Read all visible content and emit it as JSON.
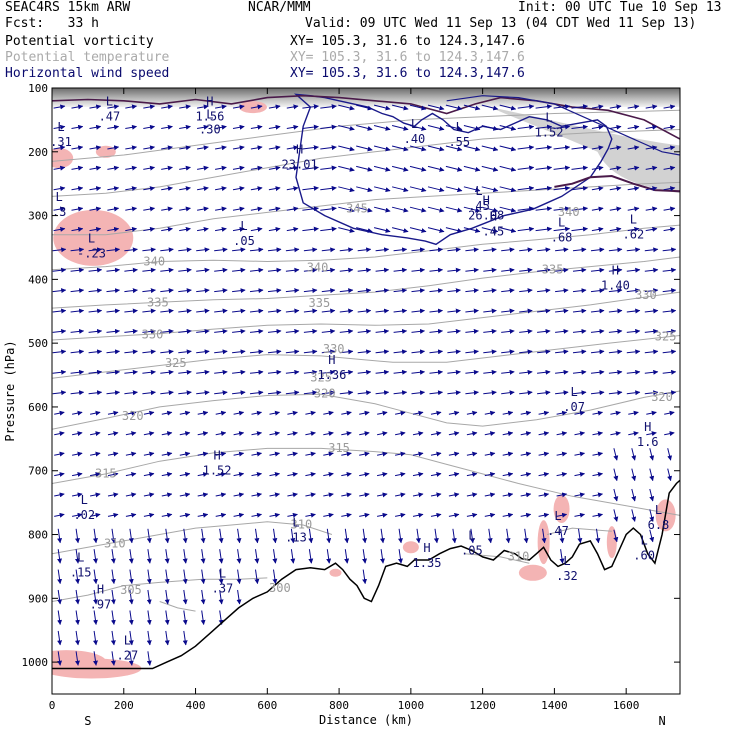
{
  "header": {
    "model": "SEAC4RS 15km ARW",
    "center": "NCAR/MMM",
    "init": "Init: 00 UTC Tue 10 Sep 13",
    "fcst": "Fcst:   33 h",
    "valid": "Valid: 09 UTC Wed 11 Sep 13 (04 CDT Wed 11 Sep 13)",
    "fields": [
      {
        "name": "Potential vorticity",
        "color": "#000000"
      },
      {
        "name": "Potential temperature",
        "color": "#aaaaaa"
      },
      {
        "name": "Horizontal wind speed",
        "color": "#0a0a6e"
      }
    ],
    "xy": "XY= 105.3, 31.6 to 124.3,147.6"
  },
  "colors": {
    "wind": "#0a0a8c",
    "theta": "#a8a8a8",
    "pv_shade": "#f4b4b4",
    "pv_contour": "#1a1a8a",
    "terrain": "#000000",
    "labels": "#10106e"
  },
  "chart_data": {
    "type": "cross-section",
    "xlabel": "Distance (km)",
    "ylabel": "Pressure (hPa)",
    "x_ticks": [
      0,
      200,
      400,
      600,
      800,
      1000,
      1200,
      1400,
      1600
    ],
    "y_ticks": [
      100,
      200,
      300,
      400,
      500,
      600,
      700,
      800,
      900,
      1000
    ],
    "xlim": [
      0,
      1750
    ],
    "ylim": [
      1050,
      100
    ],
    "endpoints": {
      "left": "S",
      "right": "N"
    },
    "theta_contours": [
      {
        "value": "305",
        "km": 220,
        "p": 888
      },
      {
        "value": "310",
        "km": 175,
        "p": 815
      },
      {
        "value": "315",
        "km": 150,
        "p": 705
      },
      {
        "value": "320",
        "km": 225,
        "p": 615
      },
      {
        "value": "325",
        "km": 345,
        "p": 532
      },
      {
        "value": "330",
        "km": 280,
        "p": 487
      },
      {
        "value": "335",
        "km": 295,
        "p": 437
      },
      {
        "value": "340",
        "km": 285,
        "p": 373
      },
      {
        "value": "345",
        "km": 850,
        "p": 290
      },
      {
        "value": "315",
        "km": 800,
        "p": 665
      },
      {
        "value": "320",
        "km": 760,
        "p": 580
      },
      {
        "value": "325",
        "km": 750,
        "p": 555
      },
      {
        "value": "330",
        "km": 785,
        "p": 510
      },
      {
        "value": "335",
        "km": 745,
        "p": 438
      },
      {
        "value": "340",
        "km": 740,
        "p": 382
      },
      {
        "value": "310",
        "km": 695,
        "p": 785
      },
      {
        "value": "300",
        "km": 635,
        "p": 885
      },
      {
        "value": "310",
        "km": 1300,
        "p": 835
      },
      {
        "value": "320",
        "km": 1700,
        "p": 585
      },
      {
        "value": "325",
        "km": 1710,
        "p": 490
      },
      {
        "value": "330",
        "km": 1655,
        "p": 425
      },
      {
        "value": "335",
        "km": 1395,
        "p": 385
      },
      {
        "value": "340",
        "km": 1440,
        "p": 295
      }
    ],
    "extrema": [
      {
        "kind": "L",
        "value": ".31",
        "km": 25,
        "p": 180
      },
      {
        "kind": "L",
        "value": ".3",
        "km": 20,
        "p": 290
      },
      {
        "kind": "L",
        "value": "-.23",
        "km": 110,
        "p": 355
      },
      {
        "kind": "L",
        "value": ".02",
        "km": 90,
        "p": 765
      },
      {
        "kind": "L",
        "value": ".15",
        "km": 80,
        "p": 855
      },
      {
        "kind": "H",
        "value": ".97",
        "km": 135,
        "p": 905
      },
      {
        "kind": "L",
        "value": ".27",
        "km": 210,
        "p": 985
      },
      {
        "kind": "L",
        "value": ".05",
        "km": 535,
        "p": 335
      },
      {
        "kind": "H",
        "value": "1.52",
        "km": 460,
        "p": 695
      },
      {
        "kind": "L",
        "value": ".37",
        "km": 475,
        "p": 880
      },
      {
        "kind": "H",
        "value": "23.01",
        "km": 690,
        "p": 215
      },
      {
        "kind": "H",
        "value": "1.36",
        "km": 780,
        "p": 545
      },
      {
        "kind": "L",
        "value": ".13",
        "km": 680,
        "p": 800
      },
      {
        "kind": "H",
        "value": "1.56",
        "km": 440,
        "p": 140
      },
      {
        "kind": "L",
        "value": ".30",
        "km": 440,
        "p": 160
      },
      {
        "kind": "L",
        "value": ".47",
        "km": 160,
        "p": 140
      },
      {
        "kind": "L",
        "value": ".40",
        "km": 1010,
        "p": 175
      },
      {
        "kind": "L",
        "value": ".45",
        "km": 1190,
        "p": 280
      },
      {
        "kind": "H",
        "value": "26.08",
        "km": 1210,
        "p": 295
      },
      {
        "kind": "H",
        "value": ".45",
        "km": 1230,
        "p": 320
      },
      {
        "kind": "L",
        "value": ".68",
        "km": 1420,
        "p": 330
      },
      {
        "kind": "L",
        "value": ".62",
        "km": 1620,
        "p": 325
      },
      {
        "kind": "H",
        "value": "1.40",
        "km": 1570,
        "p": 405
      },
      {
        "kind": "L",
        "value": ".07",
        "km": 1455,
        "p": 595
      },
      {
        "kind": "H",
        "value": "1.6",
        "km": 1660,
        "p": 650
      },
      {
        "kind": "L",
        "value": ".47",
        "km": 1410,
        "p": 790
      },
      {
        "kind": "L",
        "value": "6.8",
        "km": 1690,
        "p": 780
      },
      {
        "kind": "L",
        "value": ".60",
        "km": 1650,
        "p": 828
      },
      {
        "kind": "H",
        "value": "1.35",
        "km": 1045,
        "p": 840
      },
      {
        "kind": "L",
        "value": ".05",
        "km": 1170,
        "p": 820
      },
      {
        "kind": "L",
        "value": ".32",
        "km": 1435,
        "p": 860
      },
      {
        "kind": "L",
        "value": ".55",
        "km": 1135,
        "p": 180
      },
      {
        "kind": "L",
        "value": "1.52",
        "km": 1385,
        "p": 165
      }
    ]
  }
}
